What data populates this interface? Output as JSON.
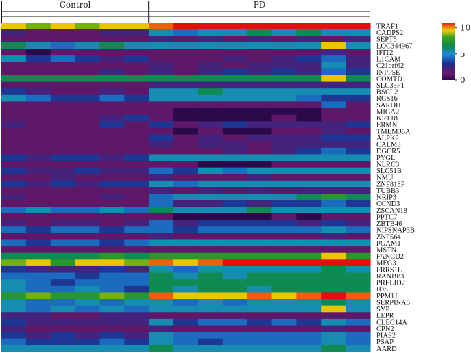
{
  "chart_data": {
    "type": "heatmap",
    "groups": [
      {
        "name": "Control",
        "columns": 6
      },
      {
        "name": "PD",
        "columns": 9
      }
    ],
    "rows": [
      "TRAF1",
      "CADPS2",
      "SEPT5",
      "LOC344967",
      "IFIT2",
      "L1CAM",
      "C21orf62",
      "INPP5E",
      "COMTD1",
      "SLC35F1",
      "BSCL2",
      "RGS16",
      "SARDH",
      "MIGA2",
      "KRT18",
      "ERMN",
      "TMEM35A",
      "ALPK2",
      "CALM3",
      "DGCR5",
      "PYGL",
      "NLRC3",
      "SLC51B",
      "NMU",
      "ZNF818P",
      "TUBB3",
      "NRIP3",
      "CCND3",
      "ZSCAN18",
      "PPTC7",
      "ZBTB46",
      "NIPSNAP3B",
      "ZNF564",
      "PGAM1",
      "MSTN",
      "FANCD2",
      "MEG3",
      "FRRS1L",
      "RANBP3",
      "PRELID2",
      "IDS",
      "PPM1J",
      "SERPINA5",
      "SYP",
      "LEPR",
      "CLEC14A",
      "CPN2",
      "PIAS2",
      "PSAP",
      "AARD"
    ],
    "colorbar": {
      "ticks": [
        10,
        5,
        0
      ],
      "min": 0,
      "max": 11
    },
    "values": [
      [
        9,
        8,
        9,
        8,
        9,
        9,
        10,
        11,
        11,
        11,
        11,
        11,
        11,
        11,
        11
      ],
      [
        2,
        1,
        1,
        1,
        2,
        2,
        5,
        4,
        5,
        5,
        6,
        5,
        6,
        5,
        5
      ],
      [
        1,
        1,
        1,
        1,
        1,
        1,
        2,
        1,
        2,
        1,
        2,
        1,
        2,
        1,
        2
      ],
      [
        6,
        5,
        4,
        5,
        6,
        5,
        5,
        5,
        5,
        5,
        5,
        5,
        5,
        9,
        5
      ],
      [
        1,
        0,
        1,
        1,
        1,
        1,
        1,
        1,
        1,
        1,
        1,
        1,
        1,
        2,
        1
      ],
      [
        5,
        3,
        4,
        3,
        2,
        3,
        1,
        1,
        1,
        2,
        1,
        2,
        3,
        4,
        2
      ],
      [
        1,
        1,
        1,
        1,
        1,
        1,
        2,
        1,
        2,
        1,
        2,
        2,
        2,
        5,
        2
      ],
      [
        1,
        1,
        1,
        1,
        2,
        1,
        2,
        1,
        2,
        3,
        2,
        3,
        2,
        4,
        3
      ],
      [
        6,
        6,
        6,
        6,
        6,
        6,
        6,
        6,
        6,
        6,
        6,
        6,
        6,
        9,
        6
      ],
      [
        1,
        1,
        1,
        1,
        1,
        1,
        2,
        2,
        2,
        2,
        2,
        2,
        2,
        2,
        2
      ],
      [
        3,
        2,
        1,
        1,
        2,
        1,
        5,
        5,
        6,
        5,
        5,
        5,
        5,
        5,
        5
      ],
      [
        5,
        4,
        3,
        3,
        4,
        3,
        5,
        5,
        5,
        5,
        5,
        5,
        4,
        3,
        3
      ],
      [
        1,
        1,
        1,
        1,
        1,
        1,
        1,
        1,
        1,
        1,
        1,
        1,
        1,
        4,
        1
      ],
      [
        1,
        1,
        1,
        1,
        1,
        1,
        1,
        0,
        0,
        0,
        0,
        0,
        0,
        1,
        1
      ],
      [
        1,
        1,
        1,
        1,
        2,
        3,
        1,
        0,
        0,
        0,
        0,
        1,
        0,
        1,
        1
      ],
      [
        2,
        1,
        1,
        1,
        3,
        1,
        3,
        1,
        2,
        3,
        2,
        2,
        2,
        2,
        3
      ],
      [
        1,
        1,
        1,
        1,
        1,
        1,
        1,
        0,
        1,
        0,
        0,
        1,
        1,
        2,
        1
      ],
      [
        1,
        1,
        1,
        1,
        1,
        1,
        3,
        1,
        2,
        1,
        2,
        2,
        2,
        3,
        3
      ],
      [
        1,
        1,
        1,
        1,
        1,
        1,
        2,
        1,
        2,
        2,
        1,
        2,
        2,
        2,
        2
      ],
      [
        1,
        1,
        1,
        1,
        1,
        1,
        1,
        1,
        1,
        2,
        1,
        2,
        3,
        4,
        3
      ],
      [
        3,
        2,
        3,
        3,
        2,
        3,
        5,
        5,
        5,
        5,
        5,
        5,
        5,
        5,
        5
      ],
      [
        1,
        1,
        1,
        1,
        1,
        1,
        1,
        1,
        0,
        0,
        0,
        1,
        1,
        1,
        1
      ],
      [
        3,
        2,
        2,
        3,
        2,
        2,
        4,
        3,
        5,
        4,
        5,
        5,
        5,
        5,
        5
      ],
      [
        1,
        1,
        2,
        1,
        1,
        1,
        2,
        1,
        1,
        1,
        2,
        1,
        1,
        1,
        1
      ],
      [
        3,
        2,
        3,
        2,
        3,
        3,
        5,
        4,
        5,
        5,
        5,
        5,
        5,
        5,
        5
      ],
      [
        1,
        1,
        1,
        1,
        1,
        1,
        2,
        1,
        2,
        1,
        2,
        1,
        2,
        2,
        2
      ],
      [
        2,
        1,
        1,
        1,
        2,
        1,
        4,
        5,
        5,
        5,
        5,
        5,
        6,
        7,
        6
      ],
      [
        1,
        1,
        1,
        1,
        1,
        1,
        4,
        2,
        2,
        3,
        2,
        3,
        3,
        4,
        3
      ],
      [
        4,
        5,
        4,
        4,
        5,
        4,
        6,
        5,
        5,
        5,
        6,
        5,
        5,
        5,
        5
      ],
      [
        1,
        1,
        1,
        1,
        1,
        1,
        1,
        0,
        0,
        0,
        0,
        1,
        0,
        1,
        1
      ],
      [
        2,
        1,
        2,
        2,
        1,
        2,
        4,
        2,
        3,
        3,
        3,
        3,
        2,
        3,
        2
      ],
      [
        4,
        3,
        4,
        4,
        3,
        4,
        4,
        3,
        4,
        4,
        4,
        4,
        4,
        5,
        4
      ],
      [
        1,
        1,
        1,
        1,
        1,
        1,
        2,
        1,
        1,
        1,
        1,
        1,
        1,
        2,
        1
      ],
      [
        4,
        3,
        4,
        4,
        3,
        4,
        5,
        5,
        5,
        5,
        5,
        5,
        5,
        5,
        5
      ],
      [
        1,
        1,
        1,
        1,
        1,
        1,
        1,
        1,
        1,
        1,
        1,
        1,
        1,
        1,
        1
      ],
      [
        6,
        6,
        6,
        6,
        7,
        6,
        7,
        7,
        7,
        7,
        7,
        7,
        7,
        9,
        7
      ],
      [
        8,
        9,
        7,
        9,
        9,
        8,
        10,
        9,
        10,
        11,
        11,
        11,
        11,
        11,
        11
      ],
      [
        3,
        2,
        2,
        2,
        3,
        2,
        5,
        4,
        5,
        5,
        5,
        5,
        5,
        6,
        5
      ],
      [
        4,
        4,
        4,
        3,
        4,
        4,
        6,
        5,
        6,
        5,
        6,
        6,
        6,
        6,
        6
      ],
      [
        5,
        4,
        3,
        4,
        4,
        4,
        6,
        6,
        6,
        6,
        6,
        6,
        6,
        6,
        6
      ],
      [
        5,
        4,
        4,
        5,
        4,
        3,
        6,
        5,
        6,
        6,
        5,
        6,
        6,
        6,
        6
      ],
      [
        7,
        8,
        7,
        7,
        8,
        7,
        10,
        9,
        9,
        9,
        10,
        9,
        10,
        11,
        10
      ],
      [
        5,
        4,
        4,
        5,
        4,
        5,
        5,
        4,
        5,
        4,
        5,
        5,
        5,
        6,
        5
      ],
      [
        5,
        4,
        5,
        4,
        5,
        4,
        5,
        5,
        5,
        5,
        5,
        5,
        5,
        9,
        5
      ],
      [
        2,
        2,
        1,
        1,
        2,
        2,
        1,
        1,
        1,
        1,
        1,
        1,
        1,
        1,
        1
      ],
      [
        3,
        2,
        2,
        2,
        2,
        2,
        5,
        3,
        4,
        4,
        3,
        4,
        3,
        5,
        4
      ],
      [
        2,
        1,
        1,
        1,
        1,
        1,
        2,
        1,
        1,
        1,
        1,
        1,
        1,
        2,
        1
      ],
      [
        3,
        2,
        3,
        2,
        3,
        2,
        5,
        4,
        4,
        4,
        4,
        4,
        4,
        5,
        4
      ],
      [
        4,
        3,
        3,
        3,
        4,
        3,
        5,
        4,
        3,
        4,
        4,
        4,
        4,
        5,
        4
      ],
      [
        5,
        5,
        5,
        5,
        5,
        5,
        6,
        5,
        5,
        5,
        5,
        5,
        5,
        6,
        5
      ]
    ]
  }
}
